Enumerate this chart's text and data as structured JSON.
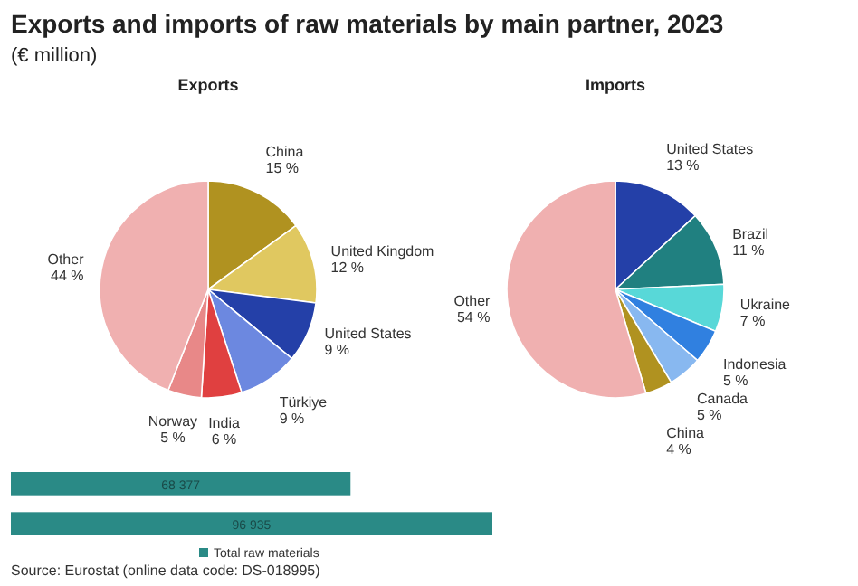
{
  "chart_data": [
    {
      "type": "other",
      "title": "Exports and imports of raw materials by main partner, 2023",
      "subtitle": "(€ million)",
      "annotations": [
        "Source: Eurostat (online data code: DS-018995)"
      ]
    },
    {
      "type": "pie",
      "title": "Exports",
      "categories": [
        "China",
        "United Kingdom",
        "United States",
        "Türkiye",
        "India",
        "Norway",
        "Other"
      ],
      "values": [
        15,
        12,
        9,
        9,
        6,
        5,
        44
      ],
      "colors": [
        "#b09220",
        "#e0c860",
        "#2440a8",
        "#6c88e0",
        "#e04040",
        "#e88888",
        "#f0b0b0"
      ],
      "value_labels": [
        "15 %",
        "12 %",
        "9 %",
        "9 %",
        "6 %",
        "5 %",
        "44 %"
      ]
    },
    {
      "type": "pie",
      "title": "Imports",
      "categories": [
        "United States",
        "Brazil",
        "Ukraine",
        "Indonesia",
        "Canada",
        "China",
        "Other"
      ],
      "values": [
        13,
        11,
        7,
        5,
        5,
        4,
        54
      ],
      "colors": [
        "#2440a8",
        "#208080",
        "#58d8d8",
        "#3080e0",
        "#88b8f0",
        "#b09220",
        "#f0b0b0"
      ],
      "value_labels": [
        "13 %",
        "11 %",
        "7 %",
        "5 %",
        "5 %",
        "4 %",
        "54 %"
      ]
    },
    {
      "type": "bar",
      "orientation": "horizontal",
      "categories": [
        null,
        null
      ],
      "legend": "bottom",
      "series": [
        {
          "name": "Total raw materials",
          "color": "#2a8a86",
          "values": [
            68377,
            96935
          ],
          "value_labels": [
            "68 377",
            "96 935"
          ]
        }
      ]
    }
  ]
}
